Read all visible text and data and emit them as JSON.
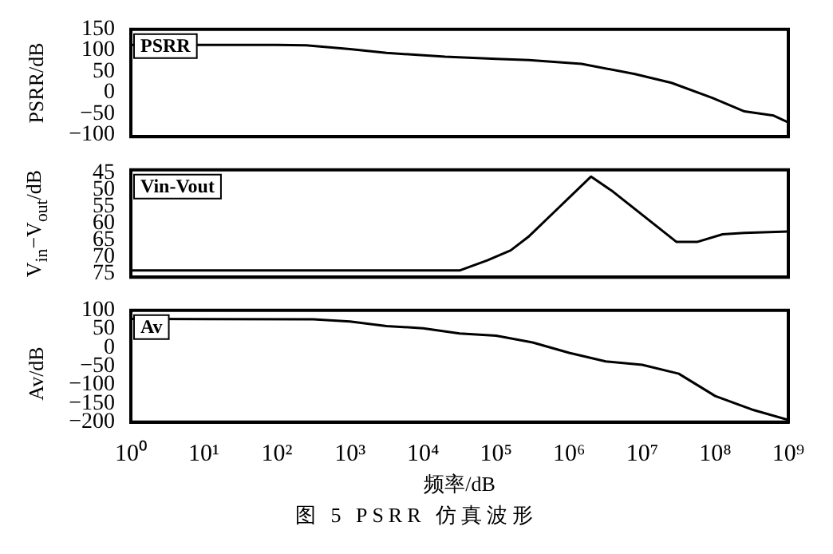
{
  "chart_data": [
    {
      "type": "line",
      "ylabel": "PSRR/dB",
      "log": "x",
      "xlim": [
        1,
        1000000000
      ],
      "ylim": [
        -105,
        150
      ],
      "yticks": [
        -100,
        -50,
        0,
        50,
        100,
        150
      ],
      "tick_labels": "y",
      "grid": false,
      "marker": "none",
      "line_style": "solid",
      "legend": "top left",
      "series": [
        {
          "name": "PSRR",
          "color": "#000000",
          "x": [
            1,
            100,
            251,
            1000,
            3162,
            20000,
            100000,
            281838,
            1479108,
            7943282,
            25118864,
            91201084,
            251188643,
            630957344,
            1000000000
          ],
          "values": [
            113,
            113,
            112,
            103,
            94,
            85,
            80,
            77,
            68,
            44,
            23,
            -13,
            -45,
            -55,
            -71
          ]
        }
      ]
    },
    {
      "type": "line",
      "ylabel": "V$_{in}$−V$_{out}$/dB",
      "log": "x",
      "xlim": [
        1,
        1000000000
      ],
      "ylim": [
        76,
        44
      ],
      "yticks": [
        45,
        50,
        55,
        60,
        65,
        70,
        75
      ],
      "tick_labels": "y",
      "grid": false,
      "marker": "none",
      "line_style": "solid",
      "legend": "top left",
      "series": [
        {
          "name": "Vin-Vout",
          "color": "#000000",
          "x": [
            1,
            10000,
            31623,
            75858,
            158489,
            275423,
            741310,
            1995262,
            3981072,
            29512092,
            56234133,
            125892541,
            251188643,
            1000000000
          ],
          "values": [
            74,
            74,
            74,
            71,
            68,
            64,
            55,
            46,
            50.5,
            65.5,
            65.5,
            63.2,
            62.8,
            62.4
          ]
        }
      ]
    },
    {
      "type": "line",
      "ylabel": "Av/dB",
      "xlabel": "频率/dB",
      "annotations": [
        "图 5  PSRR 仿真波形"
      ],
      "log": "x",
      "xlim": [
        1,
        1000000000
      ],
      "ylim": [
        -200,
        100
      ],
      "yticks": [
        -200,
        -150,
        -100,
        -50,
        0,
        50,
        100
      ],
      "xticks": [
        {
          "value": 1,
          "label": "10⁰"
        },
        {
          "value": 10,
          "label": "10¹"
        },
        {
          "value": 100,
          "label": "10²"
        },
        {
          "value": 1000,
          "label": "10³"
        },
        {
          "value": 10000,
          "label": "10⁴"
        },
        {
          "value": 100000,
          "label": "10⁵"
        },
        {
          "value": 1000000,
          "label": "10⁶"
        },
        {
          "value": 10000000,
          "label": "10⁷"
        },
        {
          "value": 100000000,
          "label": "10⁸"
        },
        {
          "value": 1000000000,
          "label": "10⁹"
        }
      ],
      "grid": false,
      "marker": "none",
      "line_style": "solid",
      "legend": "top left",
      "series": [
        {
          "name": "Av",
          "color": "#000000",
          "x": [
            1,
            316,
            1000,
            3162,
            10000,
            31623,
            100000,
            316228,
            1000000,
            3162278,
            10000000,
            31622777,
            100000000,
            316227766,
            1000000000
          ],
          "values": [
            77,
            76,
            70,
            58,
            52,
            38,
            32,
            14,
            -14,
            -37,
            -46,
            -70,
            -130,
            -166,
            -194
          ]
        }
      ]
    }
  ]
}
